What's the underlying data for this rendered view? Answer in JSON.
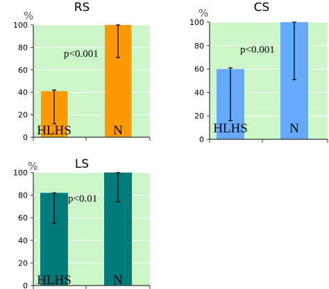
{
  "colors": {
    "plot_bg": "#ccf5c8",
    "grid": "#ffffff",
    "axis": "#333333",
    "error": "#000000"
  },
  "chart_data": [
    {
      "type": "bar",
      "title": "RS",
      "ylabel": "%",
      "ylim": [
        0,
        100
      ],
      "yticks": [
        0,
        20,
        40,
        60,
        80,
        100
      ],
      "grid": true,
      "categories": [
        "HLHS",
        "N"
      ],
      "values": [
        41,
        100
      ],
      "error_low": [
        12,
        71
      ],
      "error_high": [
        42,
        100
      ],
      "bar_color": "#ff9900",
      "annotation": "p<0.001"
    },
    {
      "type": "bar",
      "title": "CS",
      "ylabel": "%",
      "ylim": [
        0,
        100
      ],
      "yticks": [
        0,
        20,
        40,
        60,
        80,
        100
      ],
      "grid": true,
      "categories": [
        "HLHS",
        "N"
      ],
      "values": [
        60,
        100
      ],
      "error_low": [
        16,
        51
      ],
      "error_high": [
        61,
        100
      ],
      "bar_color": "#66aaff",
      "annotation": "p<0.001"
    },
    {
      "type": "bar",
      "title": "LS",
      "ylabel": "%",
      "ylim": [
        0,
        100
      ],
      "yticks": [
        0,
        20,
        40,
        60,
        80,
        100
      ],
      "grid": true,
      "categories": [
        "HLHS",
        "N"
      ],
      "values": [
        82,
        100
      ],
      "error_low": [
        55,
        74
      ],
      "error_high": [
        82,
        100
      ],
      "bar_color": "#007b7b",
      "annotation": "p<0.01"
    }
  ]
}
